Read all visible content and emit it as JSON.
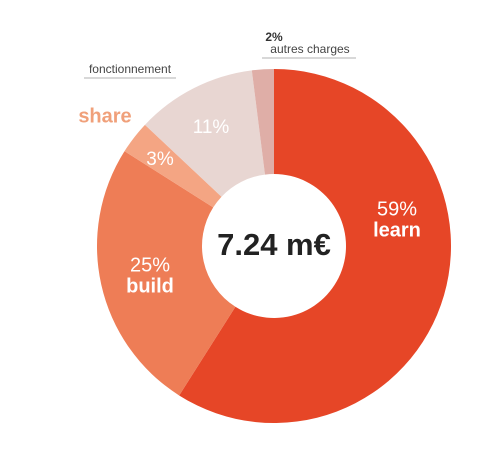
{
  "chart_data": {
    "type": "donut",
    "center_text": "7.24 m€",
    "categories": [
      "learn",
      "build",
      "share",
      "fonctionnement",
      "autres charges"
    ],
    "values": [
      59,
      25,
      3,
      11,
      2
    ],
    "value_labels": [
      "59%",
      "25%",
      "3%",
      "11%",
      "2%"
    ],
    "colors": [
      "#e64627",
      "#ee7d56",
      "#f4a583",
      "#e8d6d2",
      "#dfaea7"
    ]
  }
}
